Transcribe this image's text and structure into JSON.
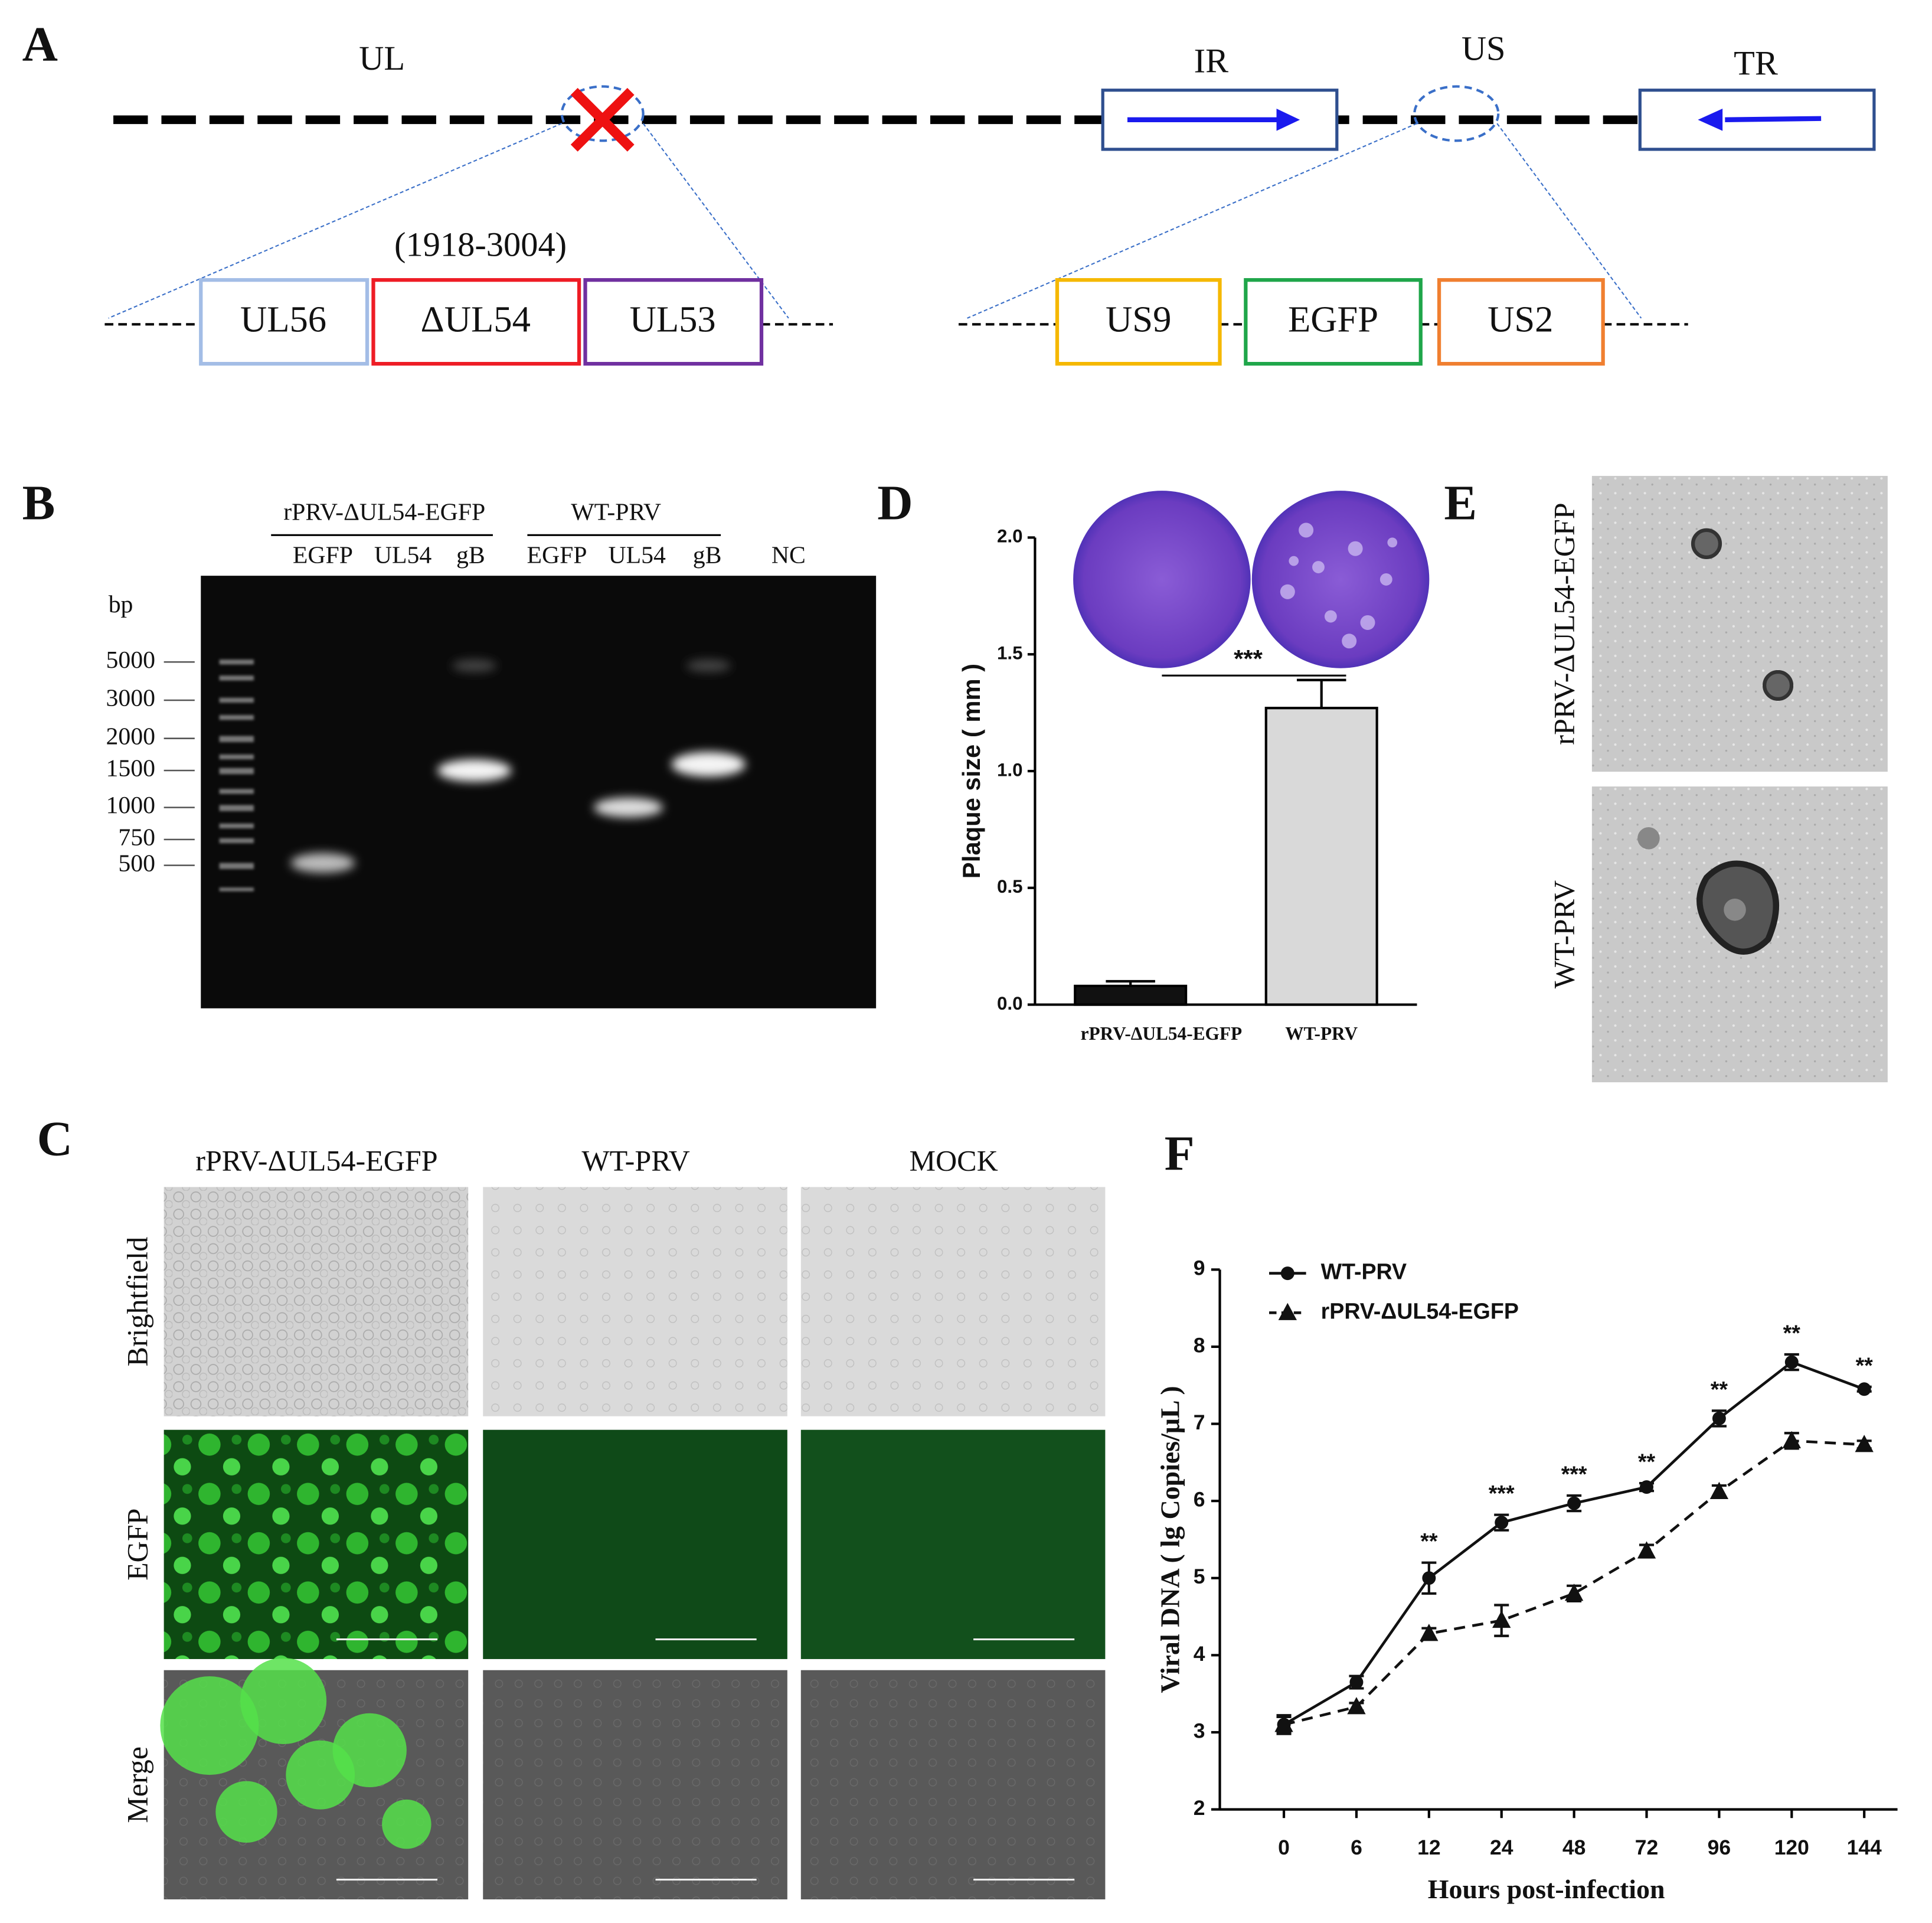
{
  "figure": {
    "panel_labels": [
      "A",
      "B",
      "C",
      "D",
      "E",
      "F"
    ],
    "panel_a": {
      "regions": [
        "UL",
        "IR",
        "US",
        "TR"
      ],
      "range": "(1918-3004)",
      "genes": [
        "UL56",
        "ΔUL54",
        "UL53",
        "US9",
        "EGFP",
        "US2"
      ]
    },
    "panel_b": {
      "groups": [
        "rPRV-ΔUL54-EGFP",
        "WT-PRV"
      ],
      "lanes": [
        "EGFP",
        "UL54",
        "gB",
        "EGFP",
        "UL54",
        "gB",
        "NC"
      ],
      "unit": "bp",
      "ladder": [
        5000,
        3000,
        2000,
        1500,
        1000,
        750,
        500
      ]
    },
    "panel_c": {
      "columns": [
        "rPRV-ΔUL54-EGFP",
        "WT-PRV",
        "MOCK"
      ],
      "rows": [
        "Brightfield",
        "EGFP",
        "Merge"
      ]
    },
    "panel_e": {
      "rows": [
        "rPRV-ΔUL54-EGFP",
        "WT-PRV"
      ]
    }
  },
  "chart_data": [
    {
      "type": "bar",
      "ylabel": "Plaque size ( mm )",
      "categories": [
        "rPRV-ΔUL54-EGFP",
        "WT-PRV"
      ],
      "values": [
        0.08,
        1.27
      ],
      "errors": [
        0.02,
        0.12
      ],
      "colors": [
        "#111111",
        "#d9d9d9"
      ],
      "annotation": "***",
      "ylim": [
        0,
        2
      ],
      "yticks": [
        {
          "value": 0,
          "label": "0.0"
        },
        {
          "value": 0.5,
          "label": "0.5"
        },
        {
          "value": 1,
          "label": "1.0"
        },
        {
          "value": 1.5,
          "label": "1.5"
        },
        {
          "value": 2,
          "label": "2.0"
        }
      ]
    },
    {
      "type": "line",
      "xlabel": "Hours post-infection",
      "ylabel": "Viral DNA ( lg Copies/μL )",
      "categories": [
        "0",
        "6",
        "12",
        "24",
        "48",
        "72",
        "96",
        "120",
        "144"
      ],
      "series": [
        {
          "name": "WT-PRV",
          "color": "#111111",
          "marker": "circle",
          "dashed": false,
          "values": [
            3.1,
            3.65,
            5.0,
            5.72,
            5.97,
            6.18,
            7.07,
            7.8,
            7.45
          ],
          "errors": [
            0.1,
            0.08,
            0.2,
            0.1,
            0.1,
            0.05,
            0.1,
            0.1,
            0.03
          ]
        },
        {
          "name": "rPRV-ΔUL54-EGFP",
          "color": "#111111",
          "marker": "triangle",
          "dashed": true,
          "values": [
            3.1,
            3.33,
            4.28,
            4.45,
            4.8,
            5.35,
            6.12,
            6.78,
            6.73
          ],
          "errors": [
            0.12,
            0.05,
            0.07,
            0.2,
            0.1,
            0.08,
            0.08,
            0.1,
            0.05
          ]
        }
      ],
      "significance": [
        null,
        null,
        "**",
        "***",
        "***",
        "**",
        "**",
        "**",
        "**"
      ],
      "ylim": [
        2,
        9
      ],
      "yticks": [
        2,
        3,
        4,
        5,
        6,
        7,
        8,
        9
      ],
      "legend": "top-left"
    }
  ]
}
